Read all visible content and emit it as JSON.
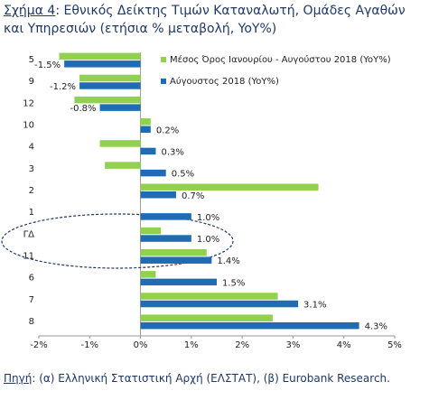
{
  "chart_data": {
    "type": "barh",
    "title_prefix": "Σχήμα 4",
    "title": ": Εθνικός Δείκτης Τιμών Καταναλωτή, Ομάδες Αγαθών και Υπηρεσιών (ετήσια % μεταβολή, YoY%)",
    "categories": [
      "5",
      "9",
      "12",
      "10",
      "4",
      "3",
      "2",
      "1",
      "ΓΔ",
      "11",
      "6",
      "7",
      "8"
    ],
    "series": [
      {
        "name": "Μέσος Όρος Ιανουρίου - Αυγούστου 2018 (YoY%)",
        "color": "#92d050",
        "values": [
          -1.6,
          -1.2,
          -1.3,
          0.2,
          -0.8,
          -0.7,
          3.5,
          0,
          0.4,
          1.3,
          0.3,
          2.7,
          2.6
        ]
      },
      {
        "name": "Αύγουστος 2018 (YoY%)",
        "color": "#1f6cb4",
        "values": [
          -1.5,
          -1.2,
          -0.8,
          0.2,
          0.3,
          0.5,
          0.7,
          1.0,
          1.0,
          1.4,
          1.5,
          3.1,
          4.3
        ],
        "value_labels": [
          "-1.5%",
          "-1.2%",
          "-0.8%",
          "0.2%",
          "0.3%",
          "0.5%",
          "0.7%",
          "1.0%",
          "1.0%",
          "1.4%",
          "1.5%",
          "3.1%",
          "4.3%"
        ]
      }
    ],
    "xlim": [
      -2,
      5
    ],
    "xticks": [
      {
        "value": -2,
        "label": "-2%"
      },
      {
        "value": -1,
        "label": "-1%"
      },
      {
        "value": 0,
        "label": "0%"
      },
      {
        "value": 1,
        "label": "1%"
      },
      {
        "value": 2,
        "label": "2%"
      },
      {
        "value": 3,
        "label": "3%"
      },
      {
        "value": 4,
        "label": "4%"
      },
      {
        "value": 5,
        "label": "5%"
      }
    ],
    "legend": "top-right",
    "source_prefix": "Πηγή",
    "source": ": (α) Ελληνική Στατιστική Αρχή (ΕΛΣΤΑΤ), (β) Eurobank Research."
  }
}
